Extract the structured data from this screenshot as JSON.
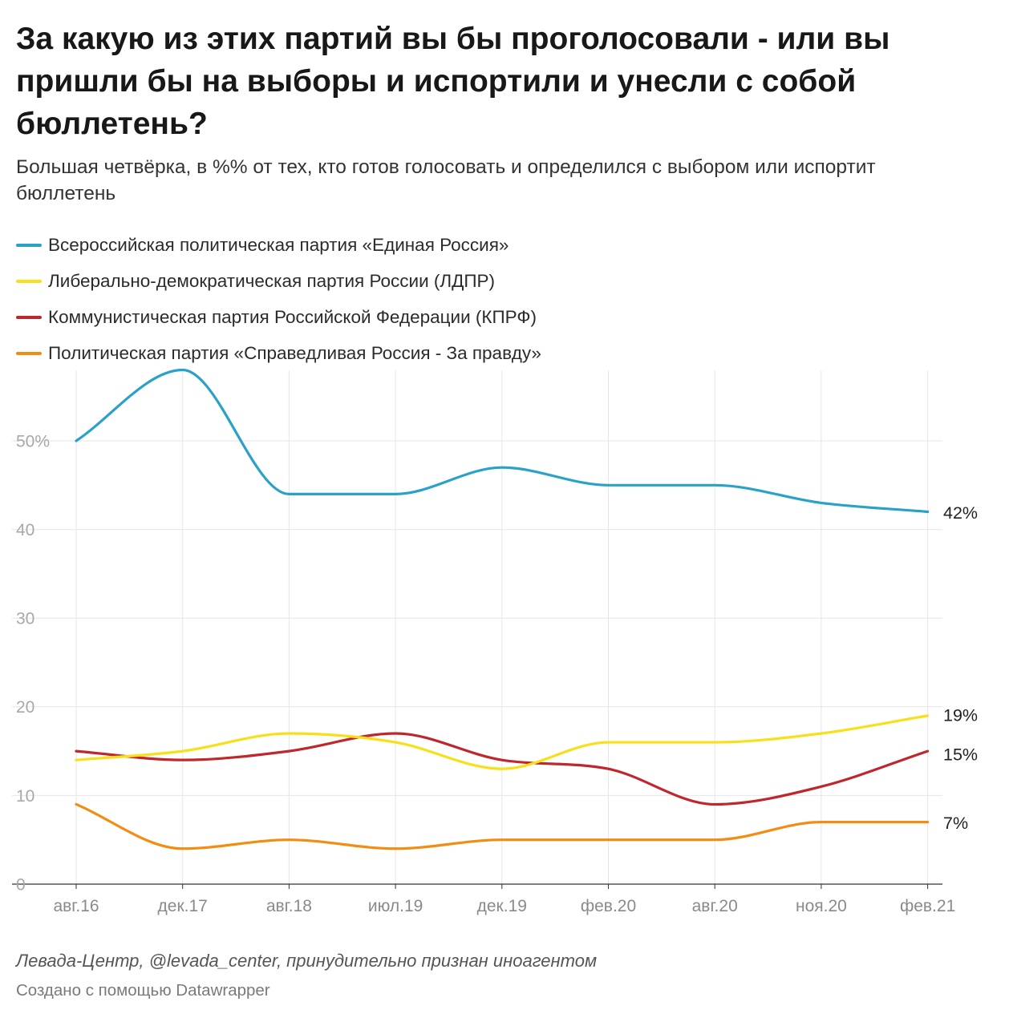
{
  "title": "За какую из этих партий вы бы проголосовали - или вы пришли бы на выборы и испортили и унесли с собой бюллетень?",
  "subtitle": "Большая четвёрка, в %% от тех, кто готов голосовать и определился с выбором или испортит бюллетень",
  "legend": [
    {
      "label": "Всероссийская политическая партия «Единая Россия»",
      "color": "#2aa2c8"
    },
    {
      "label": "Либерально-демократическая партия России (ЛДПР)",
      "color": "#f7e01a"
    },
    {
      "label": "Коммунистическая партия Российской Федерации (КПРФ)",
      "color": "#c0272d"
    },
    {
      "label": "Политическая партия «Справедливая Россия - За правду»",
      "color": "#f28c12"
    }
  ],
  "source": "Левада-Центр, @levada_center, принудительно признан иноагентом",
  "credit": "Создано с помощью Datawrapper",
  "chart_data": {
    "type": "line",
    "categories": [
      "авг.16",
      "дек.17",
      "авг.18",
      "июл.19",
      "дек.19",
      "фев.20",
      "авг.20",
      "ноя.20",
      "фев.21"
    ],
    "ylim": [
      0,
      58
    ],
    "yticks": [
      {
        "value": 0,
        "label": "0"
      },
      {
        "value": 10,
        "label": "10"
      },
      {
        "value": 20,
        "label": "20"
      },
      {
        "value": 30,
        "label": "30"
      },
      {
        "value": 40,
        "label": "40"
      },
      {
        "value": 50,
        "label": "50%"
      }
    ],
    "grid": true,
    "series": [
      {
        "name": "Всероссийская политическая партия «Единая Россия»",
        "color": "#2aa2c8",
        "values": [
          50,
          58,
          44,
          44,
          47,
          45,
          45,
          43,
          42
        ],
        "end_label": "42%"
      },
      {
        "name": "Либерально-демократическая партия России (ЛДПР)",
        "color": "#f7e01a",
        "values": [
          14,
          15,
          17,
          16,
          13,
          16,
          16,
          17,
          19
        ],
        "end_label": "19%"
      },
      {
        "name": "Коммунистическая партия Российской Федерации (КПРФ)",
        "color": "#c0272d",
        "values": [
          15,
          14,
          15,
          17,
          14,
          13,
          9,
          11,
          15
        ],
        "end_label": "15%"
      },
      {
        "name": "Политическая партия «Справедливая Россия - За правду»",
        "color": "#f28c12",
        "values": [
          9,
          4,
          5,
          4,
          5,
          5,
          5,
          7,
          7
        ],
        "end_label": "7%"
      }
    ]
  }
}
